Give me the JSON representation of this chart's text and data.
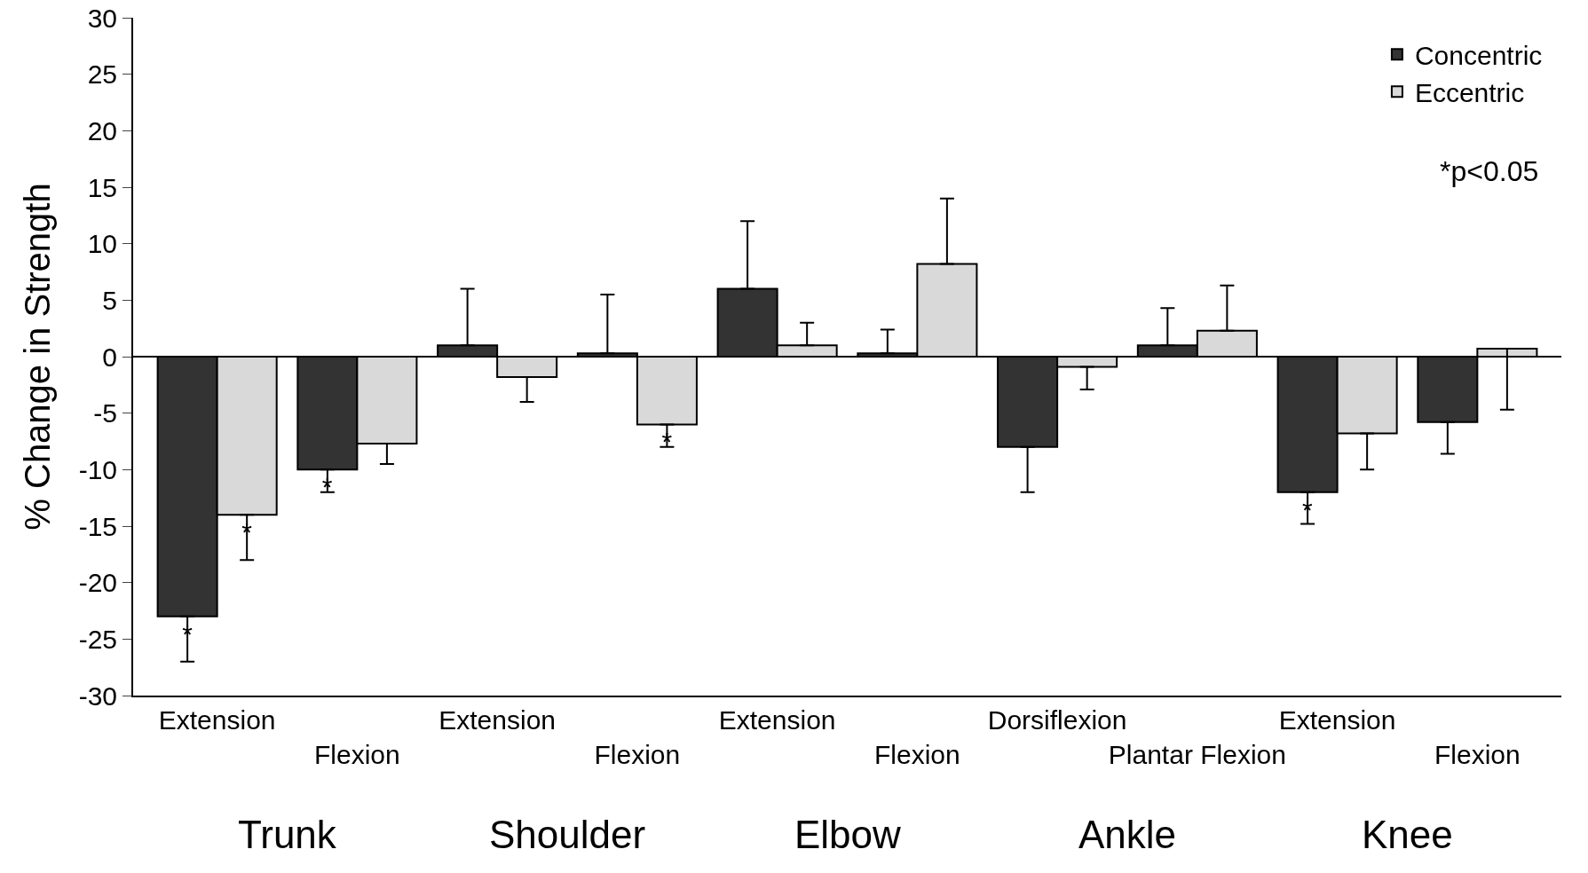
{
  "chart_data": {
    "type": "bar",
    "ylabel": "% Change in Strength",
    "categories": [
      "Extension",
      "Flexion",
      "Extension",
      "Flexion",
      "Extension",
      "Flexion",
      "Dorsiflexion",
      "Plantar Flexion",
      "Extension",
      "Flexion"
    ],
    "series": [
      {
        "name": "Concentric",
        "color": "#333333",
        "values": [
          -23,
          -10,
          1,
          0.3,
          6,
          0.3,
          -8,
          1,
          -12,
          -5.8
        ],
        "errors": [
          [
            -27,
            -23
          ],
          [
            -12,
            -10
          ],
          [
            1,
            6
          ],
          [
            0.3,
            5.5
          ],
          [
            6,
            12
          ],
          [
            0.3,
            2.4
          ],
          [
            -12,
            -8
          ],
          [
            1,
            4.3
          ],
          [
            -14.8,
            -12
          ],
          [
            -8.6,
            -5.8
          ]
        ],
        "value_labels": [
          "*",
          "*",
          null,
          null,
          null,
          null,
          null,
          null,
          "*",
          null
        ]
      },
      {
        "name": "Eccentric",
        "color": "#d9d9d9",
        "values": [
          -14,
          -7.7,
          -1.8,
          -6,
          1,
          8.2,
          -0.9,
          2.3,
          -6.8,
          0.7
        ],
        "errors": [
          [
            -18,
            -14
          ],
          [
            -9.5,
            -7.7
          ],
          [
            -4,
            -1.8
          ],
          [
            -8,
            -6
          ],
          [
            1,
            3
          ],
          [
            8.2,
            14
          ],
          [
            -2.9,
            -0.9
          ],
          [
            2.3,
            6.3
          ],
          [
            -10,
            -6.8
          ],
          [
            -4.7,
            0.7
          ]
        ],
        "value_labels": [
          "*",
          null,
          null,
          "*",
          null,
          null,
          null,
          null,
          null,
          null
        ]
      }
    ],
    "annotations": [
      "*p<0.05",
      "Trunk",
      "Shoulder",
      "Elbow",
      "Ankle",
      "Knee"
    ],
    "ref_lines": [
      {
        "axis": "y",
        "value": 0,
        "color": "#000000"
      }
    ],
    "ylim": [
      -30,
      30
    ],
    "yticks": [
      -30,
      -25,
      -20,
      -15,
      -10,
      -5,
      0,
      5,
      10,
      15,
      20,
      25,
      30
    ],
    "legend": "top right"
  }
}
